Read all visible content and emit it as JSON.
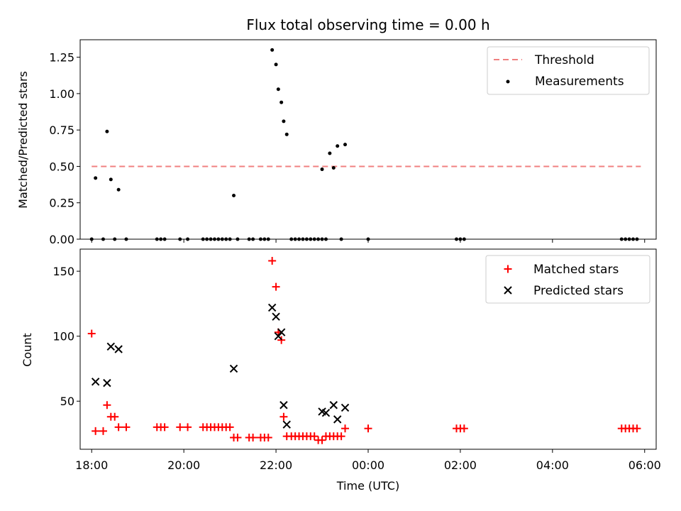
{
  "figure": {
    "title": "Flux total observing time = 0.00 h",
    "xlabel": "Time (UTC)"
  },
  "chart_data": [
    {
      "type": "scatter",
      "panel": "top",
      "ylabel": "Matched/Predicted stars",
      "xlim": [
        "17:45",
        "06:15"
      ],
      "ylim": [
        0,
        1.37
      ],
      "yticks": [
        "0.00",
        "0.25",
        "0.50",
        "0.75",
        "1.00",
        "1.25"
      ],
      "legend_position": "top-right",
      "threshold": {
        "name": "Threshold",
        "value": 0.5,
        "x_range": [
          "18:00",
          "05:55"
        ],
        "color": "#f08080"
      },
      "series": [
        {
          "name": "Measurements",
          "color": "#000000",
          "marker": "dot",
          "points": [
            [
              "18:00",
              0
            ],
            [
              "18:05",
              0.42
            ],
            [
              "18:15",
              0
            ],
            [
              "18:20",
              0.74
            ],
            [
              "18:25",
              0.41
            ],
            [
              "18:30",
              0
            ],
            [
              "18:35",
              0.34
            ],
            [
              "18:45",
              0
            ],
            [
              "19:25",
              0
            ],
            [
              "19:30",
              0
            ],
            [
              "19:35",
              0
            ],
            [
              "19:55",
              0
            ],
            [
              "20:05",
              0
            ],
            [
              "20:25",
              0
            ],
            [
              "20:30",
              0
            ],
            [
              "20:35",
              0
            ],
            [
              "20:40",
              0
            ],
            [
              "20:45",
              0
            ],
            [
              "20:50",
              0
            ],
            [
              "20:55",
              0
            ],
            [
              "21:00",
              0
            ],
            [
              "21:05",
              0.3
            ],
            [
              "21:10",
              0
            ],
            [
              "21:25",
              0
            ],
            [
              "21:30",
              0
            ],
            [
              "21:40",
              0
            ],
            [
              "21:45",
              0
            ],
            [
              "21:50",
              0
            ],
            [
              "21:55",
              1.3
            ],
            [
              "22:00",
              1.2
            ],
            [
              "22:03",
              1.03
            ],
            [
              "22:07",
              0.94
            ],
            [
              "22:10",
              0.81
            ],
            [
              "22:14",
              0.72
            ],
            [
              "22:20",
              0
            ],
            [
              "22:25",
              0
            ],
            [
              "22:30",
              0
            ],
            [
              "22:35",
              0
            ],
            [
              "22:40",
              0
            ],
            [
              "22:45",
              0
            ],
            [
              "22:50",
              0
            ],
            [
              "22:55",
              0
            ],
            [
              "23:00",
              0.48
            ],
            [
              "23:00",
              0
            ],
            [
              "23:05",
              0
            ],
            [
              "23:10",
              0.59
            ],
            [
              "23:15",
              0.49
            ],
            [
              "23:20",
              0.64
            ],
            [
              "23:25",
              0
            ],
            [
              "23:30",
              0.65
            ],
            [
              "00:00",
              0
            ],
            [
              "01:55",
              0
            ],
            [
              "02:00",
              0
            ],
            [
              "02:05",
              0
            ],
            [
              "05:30",
              0
            ],
            [
              "05:35",
              0
            ],
            [
              "05:40",
              0
            ],
            [
              "05:45",
              0
            ],
            [
              "05:50",
              0
            ]
          ]
        }
      ]
    },
    {
      "type": "scatter",
      "panel": "bottom",
      "ylabel": "Count",
      "xlim": [
        "17:45",
        "06:15"
      ],
      "ylim": [
        13,
        167
      ],
      "yticks": [
        "50",
        "100",
        "150"
      ],
      "xticks": [
        "18:00",
        "20:00",
        "22:00",
        "00:00",
        "02:00",
        "04:00",
        "06:00"
      ],
      "legend_position": "top-right",
      "series": [
        {
          "name": "Matched stars",
          "color": "#ff0000",
          "marker": "plus",
          "points": [
            [
              "18:00",
              102
            ],
            [
              "18:05",
              27
            ],
            [
              "18:15",
              27
            ],
            [
              "18:20",
              47
            ],
            [
              "18:25",
              38
            ],
            [
              "18:30",
              38
            ],
            [
              "18:35",
              30
            ],
            [
              "18:45",
              30
            ],
            [
              "19:25",
              30
            ],
            [
              "19:30",
              30
            ],
            [
              "19:35",
              30
            ],
            [
              "19:55",
              30
            ],
            [
              "20:05",
              30
            ],
            [
              "20:25",
              30
            ],
            [
              "20:30",
              30
            ],
            [
              "20:35",
              30
            ],
            [
              "20:40",
              30
            ],
            [
              "20:45",
              30
            ],
            [
              "20:50",
              30
            ],
            [
              "20:55",
              30
            ],
            [
              "21:00",
              30
            ],
            [
              "21:05",
              22
            ],
            [
              "21:10",
              22
            ],
            [
              "21:25",
              22
            ],
            [
              "21:30",
              22
            ],
            [
              "21:40",
              22
            ],
            [
              "21:45",
              22
            ],
            [
              "21:50",
              22
            ],
            [
              "21:55",
              158
            ],
            [
              "22:00",
              138
            ],
            [
              "22:03",
              103
            ],
            [
              "22:07",
              97
            ],
            [
              "22:10",
              38
            ],
            [
              "22:14",
              23
            ],
            [
              "22:20",
              23
            ],
            [
              "22:25",
              23
            ],
            [
              "22:30",
              23
            ],
            [
              "22:35",
              23
            ],
            [
              "22:40",
              23
            ],
            [
              "22:45",
              23
            ],
            [
              "22:50",
              23
            ],
            [
              "22:55",
              20
            ],
            [
              "23:00",
              20
            ],
            [
              "23:05",
              23
            ],
            [
              "23:10",
              23
            ],
            [
              "23:15",
              23
            ],
            [
              "23:20",
              23
            ],
            [
              "23:25",
              23
            ],
            [
              "23:30",
              29
            ],
            [
              "00:00",
              29
            ],
            [
              "01:55",
              29
            ],
            [
              "02:00",
              29
            ],
            [
              "02:05",
              29
            ],
            [
              "05:30",
              29
            ],
            [
              "05:35",
              29
            ],
            [
              "05:40",
              29
            ],
            [
              "05:45",
              29
            ],
            [
              "05:50",
              29
            ]
          ]
        },
        {
          "name": "Predicted stars",
          "color": "#000000",
          "marker": "x",
          "points": [
            [
              "18:05",
              65
            ],
            [
              "18:20",
              64
            ],
            [
              "18:25",
              92
            ],
            [
              "18:35",
              90
            ],
            [
              "21:05",
              75
            ],
            [
              "21:55",
              122
            ],
            [
              "22:00",
              115
            ],
            [
              "22:03",
              100
            ],
            [
              "22:07",
              103
            ],
            [
              "22:10",
              47
            ],
            [
              "22:14",
              32
            ],
            [
              "23:00",
              42
            ],
            [
              "23:05",
              41
            ],
            [
              "23:15",
              47
            ],
            [
              "23:20",
              36
            ],
            [
              "23:30",
              45
            ]
          ]
        }
      ]
    }
  ]
}
